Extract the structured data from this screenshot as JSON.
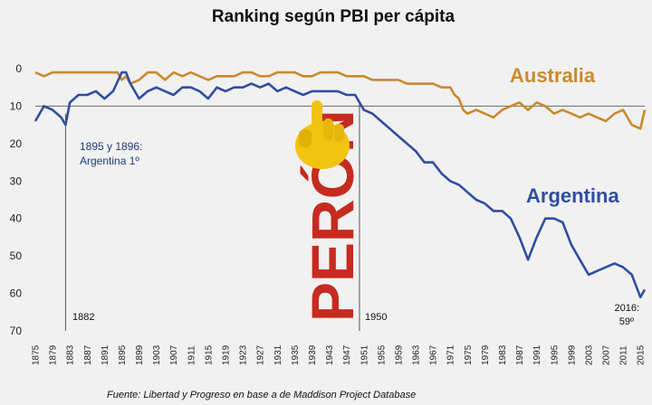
{
  "chart_data": {
    "type": "line",
    "title": "Ranking según PBI per cápita",
    "xlabel": "",
    "ylabel": "",
    "xlim": [
      1875,
      2016
    ],
    "ylim": [
      0,
      70
    ],
    "y_inverted": true,
    "y_ticks": [
      0,
      10,
      20,
      30,
      40,
      50,
      60,
      70
    ],
    "x_ticks": [
      1875,
      1879,
      1883,
      1887,
      1891,
      1895,
      1899,
      1903,
      1907,
      1911,
      1915,
      1919,
      1923,
      1927,
      1931,
      1935,
      1939,
      1943,
      1947,
      1951,
      1955,
      1959,
      1963,
      1967,
      1971,
      1975,
      1979,
      1983,
      1987,
      1991,
      1995,
      1999,
      2003,
      2007,
      2011,
      2015
    ],
    "x_tick_labels": [
      "1875",
      "1879",
      "1883",
      "1887",
      "1891",
      "1895",
      "1899",
      "1903",
      "1907",
      "1911",
      "1915",
      "1919",
      "1923",
      "1927",
      "1931",
      "1935",
      "1939",
      "1943",
      "1947",
      "1951",
      "1955",
      "1959",
      "1963",
      "1967",
      "1971",
      "1975",
      "1979",
      "1983",
      "1987",
      "1991",
      "1995",
      "1999",
      "2003",
      "2007",
      "2011",
      "2015"
    ],
    "reference_line_y": 10,
    "series": [
      {
        "name": "Australia",
        "color": "#c98a2e",
        "x": [
          1875,
          1877,
          1879,
          1881,
          1883,
          1885,
          1887,
          1889,
          1891,
          1893,
          1894,
          1895,
          1896,
          1897,
          1899,
          1901,
          1903,
          1905,
          1907,
          1909,
          1911,
          1913,
          1915,
          1917,
          1919,
          1921,
          1923,
          1925,
          1927,
          1929,
          1931,
          1933,
          1935,
          1937,
          1939,
          1941,
          1943,
          1945,
          1947,
          1949,
          1951,
          1953,
          1955,
          1957,
          1959,
          1961,
          1963,
          1965,
          1967,
          1969,
          1971,
          1972,
          1973,
          1974,
          1975,
          1977,
          1979,
          1981,
          1983,
          1985,
          1987,
          1989,
          1991,
          1993,
          1995,
          1997,
          1999,
          2001,
          2003,
          2005,
          2007,
          2009,
          2011,
          2013,
          2015,
          2016
        ],
        "values": [
          1,
          2,
          1,
          1,
          1,
          1,
          1,
          1,
          1,
          1,
          1,
          3,
          2,
          4,
          3,
          1,
          1,
          3,
          1,
          2,
          1,
          2,
          3,
          2,
          2,
          2,
          1,
          1,
          2,
          2,
          1,
          1,
          1,
          2,
          2,
          1,
          1,
          1,
          2,
          2,
          2,
          3,
          3,
          3,
          3,
          4,
          4,
          4,
          4,
          5,
          5,
          7,
          8,
          11,
          12,
          11,
          12,
          13,
          11,
          10,
          9,
          11,
          9,
          10,
          12,
          11,
          12,
          13,
          12,
          13,
          14,
          12,
          11,
          15,
          16,
          11
        ]
      },
      {
        "name": "Argentina",
        "color": "#2f4ea0",
        "x": [
          1875,
          1877,
          1879,
          1881,
          1882,
          1883,
          1885,
          1887,
          1889,
          1891,
          1893,
          1895,
          1896,
          1897,
          1899,
          1901,
          1903,
          1905,
          1907,
          1909,
          1911,
          1913,
          1915,
          1917,
          1919,
          1921,
          1923,
          1925,
          1927,
          1929,
          1931,
          1933,
          1935,
          1937,
          1939,
          1941,
          1943,
          1945,
          1947,
          1949,
          1950,
          1951,
          1953,
          1955,
          1957,
          1959,
          1961,
          1963,
          1965,
          1967,
          1969,
          1971,
          1973,
          1975,
          1977,
          1979,
          1981,
          1983,
          1985,
          1987,
          1989,
          1991,
          1993,
          1995,
          1997,
          1999,
          2001,
          2003,
          2005,
          2007,
          2009,
          2011,
          2013,
          2015,
          2016
        ],
        "values": [
          14,
          10,
          11,
          13,
          15,
          9,
          7,
          7,
          6,
          8,
          6,
          1,
          1,
          4,
          8,
          6,
          5,
          6,
          7,
          5,
          5,
          6,
          8,
          5,
          6,
          5,
          5,
          4,
          5,
          4,
          6,
          5,
          6,
          7,
          6,
          6,
          6,
          6,
          7,
          7,
          9,
          11,
          12,
          14,
          16,
          18,
          20,
          22,
          25,
          25,
          28,
          30,
          31,
          33,
          35,
          36,
          38,
          38,
          40,
          45,
          51,
          45,
          40,
          40,
          41,
          47,
          51,
          55,
          54,
          53,
          52,
          53,
          55,
          61,
          59
        ]
      }
    ],
    "annotations": {
      "note_line1": "1895 y 1896:",
      "note_line2": "Argentina 1º",
      "marker_1882": "1882",
      "marker_1950": "1950",
      "end_line1": "2016:",
      "end_line2": "59º",
      "australia_label": "Australia",
      "argentina_label": "Argentina",
      "peron": "PERÓN",
      "source": "Fuente: Libertad y Progreso en  base a de Maddison Project Database"
    }
  }
}
